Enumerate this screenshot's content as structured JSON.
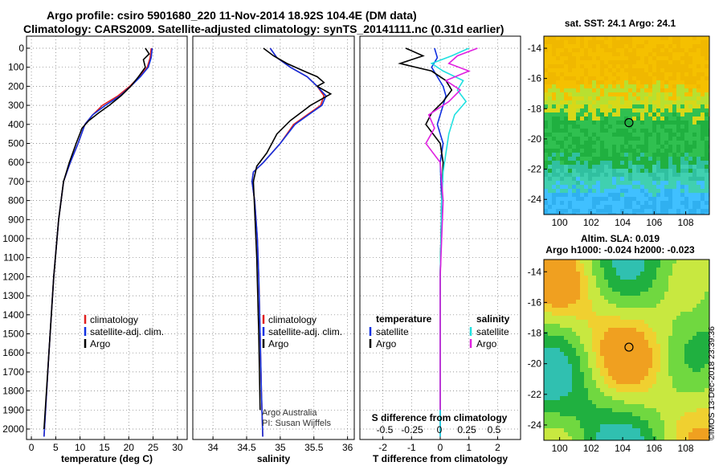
{
  "title": {
    "line1": "Argo profile: csiro 5901680_220 11-Nov-2014 18.92S 104.4E (DM data)",
    "line2": "Climatology: CARS2009. Satellite-adjusted climatology: synTS_20141111.nc (0.31d earlier)"
  },
  "sidebar_stamp": "©IMOS 13-Dec-2018 23:39:36",
  "colors": {
    "climatology": "#e02020",
    "satellite": "#1030e0",
    "argo": "#000000",
    "sat_salinity": "#20e0e0",
    "argo_salinity": "#e020e0"
  },
  "chart_data": [
    {
      "type": "line",
      "xlabel": "temperature (deg C)",
      "xlim": [
        -1,
        32
      ],
      "xticks": [
        0,
        5,
        10,
        15,
        20,
        25,
        30
      ],
      "ylim": [
        2080,
        0
      ],
      "yticks": [
        0,
        100,
        200,
        300,
        400,
        500,
        600,
        700,
        800,
        900,
        1000,
        1100,
        1200,
        1300,
        1400,
        1500,
        1600,
        1700,
        1800,
        1900,
        2000
      ],
      "legend": [
        "climatology",
        "satellite-adj. clim.",
        "Argo"
      ],
      "series": [
        {
          "name": "climatology",
          "color": "#e02020",
          "x": [
            24.6,
            24.4,
            23.8,
            22.2,
            20.2,
            17.8,
            14.6,
            12.6,
            11.0,
            9.6,
            8.0,
            6.6,
            5.6,
            4.6,
            3.6,
            2.6
          ],
          "y": [
            0,
            50,
            100,
            150,
            200,
            250,
            300,
            350,
            400,
            500,
            600,
            700,
            900,
            1200,
            1600,
            2040
          ]
        },
        {
          "name": "satellite-adj. clim.",
          "color": "#1030e0",
          "x": [
            24.8,
            24.6,
            24.0,
            22.4,
            20.4,
            18.2,
            15.2,
            12.6,
            11.0,
            9.6,
            8.0,
            6.6,
            5.6,
            4.6,
            3.6,
            2.6
          ],
          "y": [
            0,
            50,
            100,
            150,
            200,
            250,
            300,
            350,
            400,
            500,
            600,
            700,
            900,
            1200,
            1600,
            2040
          ]
        },
        {
          "name": "Argo",
          "color": "#000000",
          "x": [
            23.4,
            24.2,
            23.0,
            23.4,
            22.0,
            20.4,
            18.4,
            16.0,
            13.8,
            11.8,
            10.4,
            9.2,
            7.8,
            6.6,
            5.6,
            4.6,
            3.6,
            2.6
          ],
          "y": [
            0,
            30,
            60,
            100,
            150,
            200,
            250,
            300,
            340,
            380,
            420,
            500,
            600,
            700,
            900,
            1200,
            1600,
            2000
          ]
        }
      ]
    },
    {
      "type": "line",
      "xlabel": "salinity",
      "xlim": [
        33.7,
        36.1
      ],
      "xticks": [
        34,
        34.5,
        35,
        35.5,
        36
      ],
      "xticklabels": [
        "34",
        "34.5",
        "35",
        "35.5",
        "36"
      ],
      "ylim": [
        2080,
        0
      ],
      "legend": [
        "climatology",
        "satellite-adj. clim.",
        "Argo"
      ],
      "annotation": [
        "Argo Australia",
        "PI: Susan Wijffels"
      ],
      "series": [
        {
          "name": "climatology",
          "color": "#e02020",
          "x": [
            34.85,
            34.95,
            35.15,
            35.4,
            35.55,
            35.65,
            35.6,
            35.4,
            35.2,
            35.0,
            34.75,
            34.6,
            34.58,
            34.62,
            34.66,
            34.68,
            34.7,
            34.72,
            34.74
          ],
          "y": [
            0,
            50,
            100,
            150,
            200,
            250,
            300,
            350,
            400,
            500,
            600,
            650,
            700,
            800,
            1000,
            1200,
            1500,
            1800,
            2040
          ]
        },
        {
          "name": "satellite-adj. clim.",
          "color": "#1030e0",
          "x": [
            34.85,
            34.95,
            35.15,
            35.4,
            35.55,
            35.68,
            35.62,
            35.42,
            35.22,
            35.0,
            34.75,
            34.6,
            34.58,
            34.62,
            34.66,
            34.68,
            34.7,
            34.72,
            34.74
          ],
          "y": [
            0,
            50,
            100,
            150,
            200,
            250,
            300,
            350,
            400,
            500,
            600,
            650,
            700,
            800,
            1000,
            1200,
            1500,
            1800,
            2040
          ]
        },
        {
          "name": "Argo",
          "color": "#000000",
          "x": [
            34.75,
            34.9,
            35.1,
            35.35,
            35.55,
            35.65,
            35.55,
            35.75,
            35.45,
            35.15,
            34.95,
            34.8,
            34.65,
            34.6,
            34.62,
            34.65,
            34.68,
            34.7
          ],
          "y": [
            0,
            40,
            80,
            120,
            150,
            180,
            200,
            240,
            300,
            380,
            450,
            550,
            620,
            700,
            850,
            1100,
            1500,
            1900
          ]
        }
      ]
    },
    {
      "type": "line",
      "xlabel": "T difference from climatology",
      "xlim": [
        -2.8,
        2.8
      ],
      "xticks": [
        -2,
        -1,
        0,
        1,
        2
      ],
      "xticklabels": [
        "-2",
        "-1",
        "0",
        "1",
        "2"
      ],
      "secondary_xlabel": "S difference from climatology",
      "secondary_xticks": [
        -0.5,
        -0.25,
        0,
        0.25,
        0.5
      ],
      "secondary_xticklabels": [
        "-0.5",
        "-0.25",
        "0",
        "0.25",
        "0.5"
      ],
      "ylim": [
        2080,
        0
      ],
      "legend_left_title": "temperature",
      "legend_right_title": "salinity",
      "legend_left": [
        "satellite",
        "Argo"
      ],
      "legend_right": [
        "satellite",
        "Argo"
      ],
      "series": [
        {
          "name": "T satellite",
          "color": "#1030e0",
          "x": [
            -0.2,
            -0.1,
            -0.3,
            -0.1,
            0.1,
            0.2,
            0.1,
            0.0,
            -0.1,
            0.1,
            0.0,
            0.05,
            0.0,
            0.0
          ],
          "y": [
            0,
            50,
            100,
            150,
            200,
            250,
            300,
            350,
            400,
            500,
            600,
            800,
            1200,
            2040
          ]
        },
        {
          "name": "T Argo",
          "color": "#000000",
          "x": [
            -1.2,
            -0.6,
            -1.4,
            -0.3,
            0.2,
            0.4,
            0.1,
            -0.3,
            -0.5,
            0.0,
            0.1,
            0.05,
            0.0,
            0.0
          ],
          "y": [
            0,
            40,
            80,
            120,
            170,
            220,
            280,
            340,
            400,
            500,
            600,
            800,
            1200,
            1900
          ]
        },
        {
          "name": "S satellite",
          "color": "#20e0e0",
          "x": [
            1.0,
            0.4,
            -0.3,
            0.1,
            0.8,
            0.6,
            0.9,
            0.5,
            0.3,
            0.2,
            0.1,
            0.05,
            0.0,
            0.0
          ],
          "y": [
            0,
            40,
            80,
            120,
            170,
            220,
            280,
            350,
            450,
            550,
            650,
            800,
            1200,
            2040
          ]
        },
        {
          "name": "S Argo",
          "color": "#e020e0",
          "x": [
            1.3,
            0.6,
            0.3,
            1.0,
            0.2,
            0.7,
            0.3,
            -0.4,
            -0.2,
            -0.5,
            0.0,
            0.1,
            0.0,
            0.0
          ],
          "y": [
            0,
            40,
            80,
            120,
            170,
            220,
            280,
            350,
            420,
            500,
            600,
            800,
            1200,
            1900
          ]
        }
      ]
    },
    {
      "type": "heatmap",
      "title": "sat. SST: 24.1 Argo: 24.1",
      "xticks": [
        100,
        102,
        104,
        106,
        108
      ],
      "yticks": [
        -14,
        -16,
        -18,
        -20,
        -22,
        -24
      ],
      "xlim": [
        99,
        109.5
      ],
      "ylim": [
        -25,
        -13.2
      ],
      "marker": {
        "lon": 104.4,
        "lat": -18.92
      }
    },
    {
      "type": "heatmap",
      "title_line1": "Altim. SLA: 0.019",
      "title_line2": "Argo h1000: -0.024 h2000: -0.023",
      "xticks": [
        100,
        102,
        104,
        106,
        108
      ],
      "yticks": [
        -14,
        -16,
        -18,
        -20,
        -22,
        -24
      ],
      "xlim": [
        99,
        109.5
      ],
      "ylim": [
        -25,
        -13.2
      ],
      "marker": {
        "lon": 104.4,
        "lat": -18.92
      }
    }
  ]
}
